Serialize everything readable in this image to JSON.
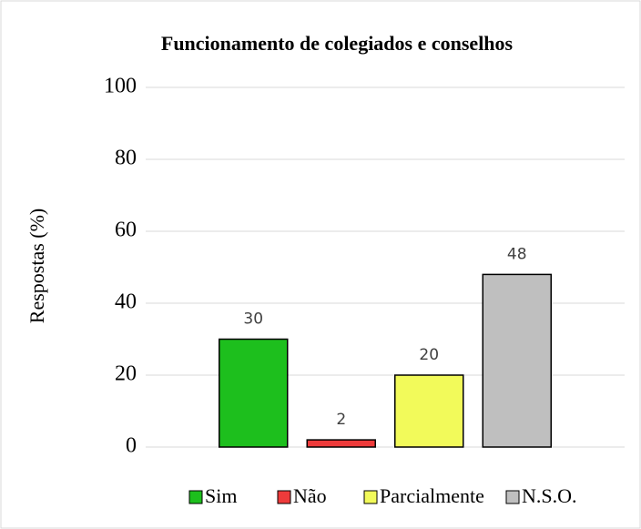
{
  "chart_data": {
    "type": "bar",
    "title": "Funcionamento de colegiados e conselhos",
    "y_label": "Respostas (%)",
    "categories": [
      "Sim",
      "Não",
      "Parcialmente",
      "N.S.O."
    ],
    "values": [
      30,
      2,
      20,
      48
    ],
    "colors": [
      "#1dbf1d",
      "#ee3b3b",
      "#f2fa5a",
      "#bfbfbf"
    ],
    "ylim": [
      0,
      100
    ],
    "yticks": [
      0,
      20,
      40,
      60,
      80,
      100
    ],
    "grid": true,
    "legend": "bottom"
  }
}
